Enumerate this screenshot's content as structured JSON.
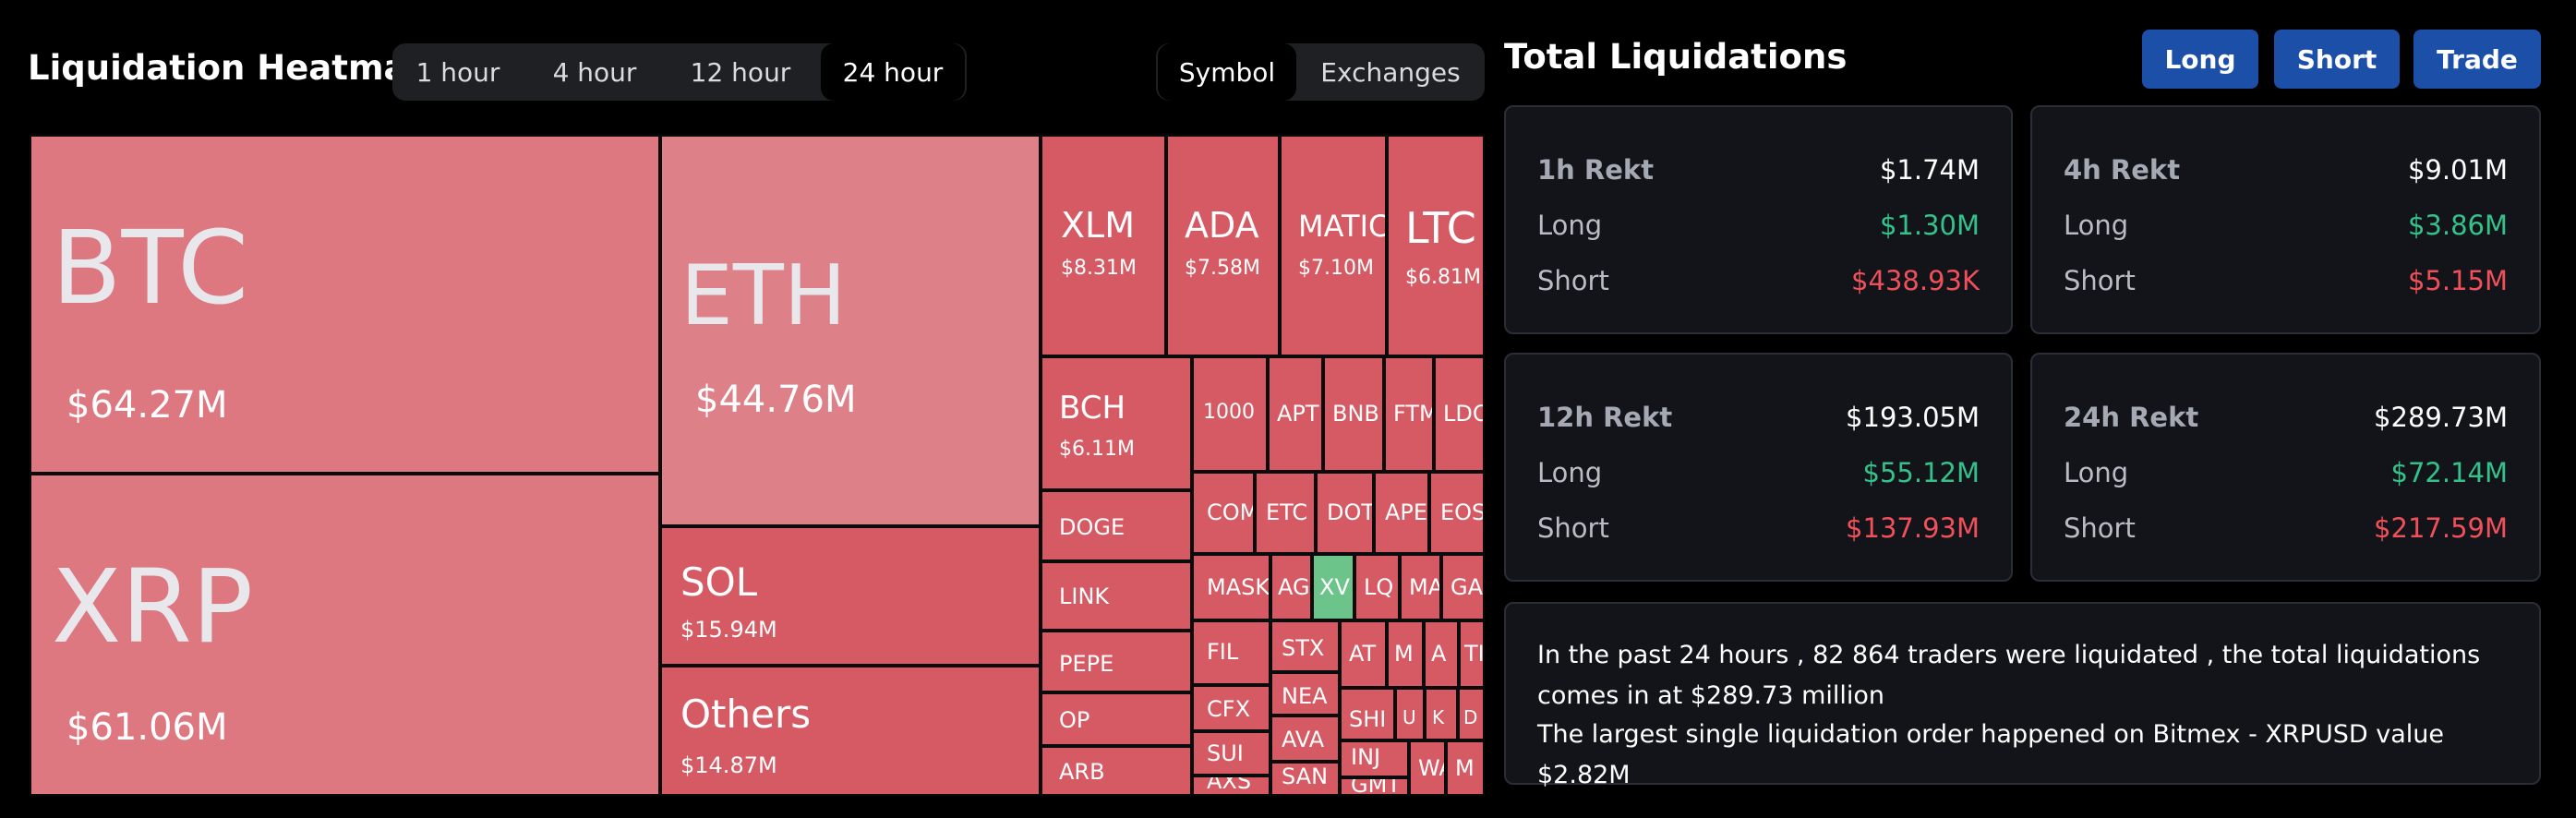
{
  "heatmap": {
    "title": "Liquidation Heatmap",
    "time_tabs": [
      "1 hour",
      "4 hour",
      "12 hour",
      "24 hour"
    ],
    "active_time_tab": "24 hour",
    "view_tabs": [
      "Symbol",
      "Exchanges"
    ],
    "active_view_tab": "Symbol",
    "colors": {
      "loss": "#d65a63",
      "gain": "#6cc48a",
      "background": "#000000"
    },
    "tiles": [
      {
        "symbol": "BTC",
        "value": "$64.27M"
      },
      {
        "symbol": "XRP",
        "value": "$61.06M"
      },
      {
        "symbol": "ETH",
        "value": "$44.76M"
      },
      {
        "symbol": "SOL",
        "value": "$15.94M"
      },
      {
        "symbol": "Others",
        "value": "$14.87M"
      },
      {
        "symbol": "XLM",
        "value": "$8.31M"
      },
      {
        "symbol": "ADA",
        "value": "$7.58M"
      },
      {
        "symbol": "MATIC",
        "value": "$7.10M"
      },
      {
        "symbol": "LTC",
        "value": "$6.81M"
      },
      {
        "symbol": "BCH",
        "value": "$6.11M"
      },
      {
        "symbol": "1000",
        "value": ""
      },
      {
        "symbol": "APT",
        "value": ""
      },
      {
        "symbol": "BNB",
        "value": ""
      },
      {
        "symbol": "FTM",
        "value": ""
      },
      {
        "symbol": "LDO",
        "value": ""
      },
      {
        "symbol": "DOGE",
        "value": ""
      },
      {
        "symbol": "COM",
        "value": ""
      },
      {
        "symbol": "ETC",
        "value": ""
      },
      {
        "symbol": "DOT",
        "value": ""
      },
      {
        "symbol": "APE",
        "value": ""
      },
      {
        "symbol": "EOS",
        "value": ""
      },
      {
        "symbol": "LINK",
        "value": ""
      },
      {
        "symbol": "MASK",
        "value": ""
      },
      {
        "symbol": "AG",
        "value": ""
      },
      {
        "symbol": "XV",
        "value": ""
      },
      {
        "symbol": "LQ",
        "value": ""
      },
      {
        "symbol": "MA",
        "value": ""
      },
      {
        "symbol": "GA",
        "value": ""
      },
      {
        "symbol": "PEPE",
        "value": ""
      },
      {
        "symbol": "FIL",
        "value": ""
      },
      {
        "symbol": "STX",
        "value": ""
      },
      {
        "symbol": "AT",
        "value": ""
      },
      {
        "symbol": "M",
        "value": ""
      },
      {
        "symbol": "A",
        "value": ""
      },
      {
        "symbol": "TI",
        "value": ""
      },
      {
        "symbol": "OP",
        "value": ""
      },
      {
        "symbol": "CFX",
        "value": ""
      },
      {
        "symbol": "NEA",
        "value": ""
      },
      {
        "symbol": "SHI",
        "value": ""
      },
      {
        "symbol": "U",
        "value": ""
      },
      {
        "symbol": "K",
        "value": ""
      },
      {
        "symbol": "D",
        "value": ""
      },
      {
        "symbol": "SUI",
        "value": ""
      },
      {
        "symbol": "AVA",
        "value": ""
      },
      {
        "symbol": "INJ",
        "value": ""
      },
      {
        "symbol": "ARB",
        "value": ""
      },
      {
        "symbol": "AXS",
        "value": ""
      },
      {
        "symbol": "SAN",
        "value": ""
      },
      {
        "symbol": "GMT",
        "value": ""
      },
      {
        "symbol": "WA",
        "value": ""
      },
      {
        "symbol": "M",
        "value": ""
      }
    ]
  },
  "liquidations": {
    "title": "Total Liquidations",
    "buttons": [
      "Long",
      "Short",
      "Trade"
    ],
    "cards": [
      {
        "label": "1h Rekt",
        "total": "$1.74M",
        "long_label": "Long",
        "long": "$1.30M",
        "short_label": "Short",
        "short": "$438.93K"
      },
      {
        "label": "4h Rekt",
        "total": "$9.01M",
        "long_label": "Long",
        "long": "$3.86M",
        "short_label": "Short",
        "short": "$5.15M"
      },
      {
        "label": "12h Rekt",
        "total": "$193.05M",
        "long_label": "Long",
        "long": "$55.12M",
        "short_label": "Short",
        "short": "$137.93M"
      },
      {
        "label": "24h Rekt",
        "total": "$289.73M",
        "long_label": "Long",
        "long": "$72.14M",
        "short_label": "Short",
        "short": "$217.59M"
      }
    ],
    "summary_line1": "In the past 24 hours , 82 864 traders were liquidated , the total liquidations comes in at $289.73 million",
    "summary_line2": "The largest single liquidation order happened on Bitmex - XRPUSD value $2.82M"
  }
}
